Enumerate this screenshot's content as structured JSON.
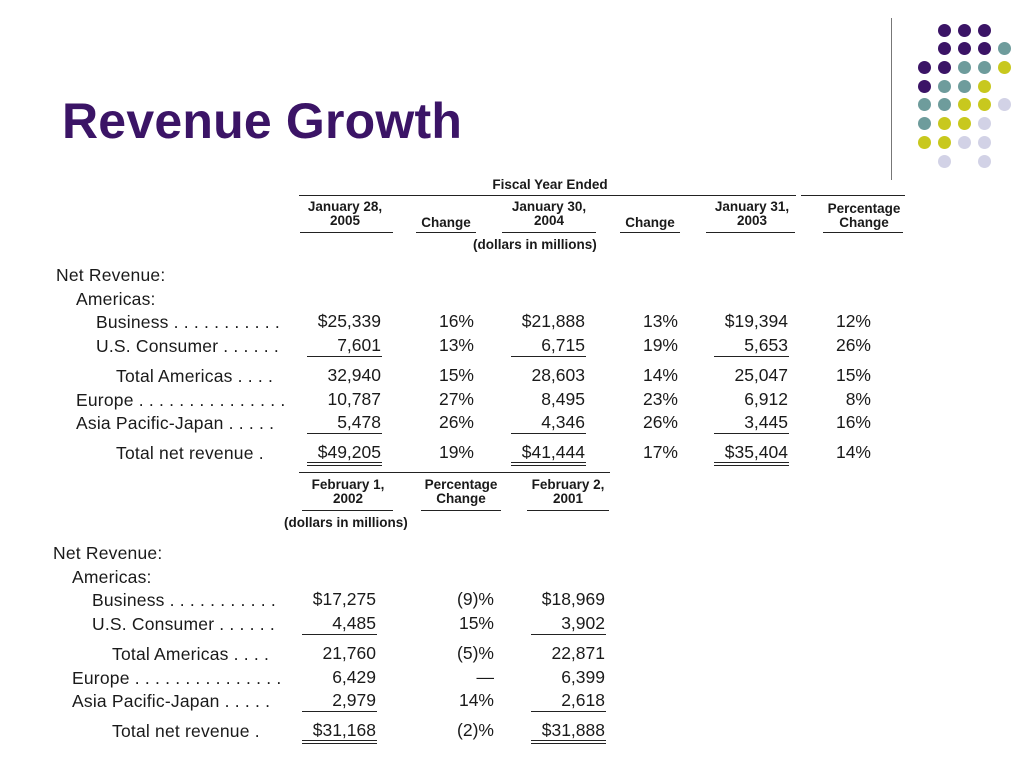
{
  "slide": {
    "title": "Revenue Growth",
    "colors": {
      "title": "#3b1466",
      "purple": "#3b1466",
      "teal": "#6e9c9c",
      "lime": "#c8c81e",
      "lavender": "#d2d2e6"
    }
  },
  "table1": {
    "group_header": "Fiscal Year Ended",
    "units": "(dollars in millions)",
    "headers": [
      "January 28,\n2005",
      "Change",
      "January 30,\n2004",
      "Change",
      "January 31,\n2003",
      "Percentage\nChange"
    ],
    "section_label": "Net Revenue:",
    "subsection_label": "Americas:",
    "rows": [
      {
        "label": "Business . . . . . . . . . . .",
        "values": [
          "$25,339",
          "16%",
          "$21,888",
          "13%",
          "$19,394",
          "12%"
        ]
      },
      {
        "label": "U.S. Consumer . . . . . .",
        "values": [
          "7,601",
          "13%",
          "6,715",
          "19%",
          "5,653",
          "26%"
        ]
      },
      {
        "label": "Total Americas . . . .",
        "values": [
          "32,940",
          "15%",
          "28,603",
          "14%",
          "25,047",
          "15%"
        ]
      },
      {
        "label": "Europe . . . . . . . . . . . . . . .",
        "values": [
          "10,787",
          "27%",
          "8,495",
          "23%",
          "6,912",
          "8%"
        ]
      },
      {
        "label": "Asia Pacific-Japan . . . . .",
        "values": [
          "5,478",
          "26%",
          "4,346",
          "26%",
          "3,445",
          "16%"
        ]
      },
      {
        "label": "Total net revenue  .",
        "values": [
          "$49,205",
          "19%",
          "$41,444",
          "17%",
          "$35,404",
          "14%"
        ]
      }
    ]
  },
  "table2": {
    "units": "(dollars in millions)",
    "headers": [
      "February 1,\n2002",
      "Percentage\nChange",
      "February 2,\n2001"
    ],
    "section_label": "Net Revenue:",
    "subsection_label": "Americas:",
    "rows": [
      {
        "label": "Business . . . . . . . . . . .",
        "values": [
          "$17,275",
          "(9)%",
          "$18,969"
        ]
      },
      {
        "label": "U.S. Consumer . . . . . .",
        "values": [
          "4,485",
          "15%",
          "3,902"
        ]
      },
      {
        "label": "Total Americas . . . .",
        "values": [
          "21,760",
          "(5)%",
          "22,871"
        ]
      },
      {
        "label": "Europe . . . . . . . . . . . . . . .",
        "values": [
          "6,429",
          "—",
          "6,399"
        ]
      },
      {
        "label": "Asia Pacific-Japan . . . . .",
        "values": [
          "2,979",
          "14%",
          "2,618"
        ]
      },
      {
        "label": "Total net revenue  .",
        "values": [
          "$31,168",
          "(2)%",
          "$31,888"
        ]
      }
    ]
  }
}
